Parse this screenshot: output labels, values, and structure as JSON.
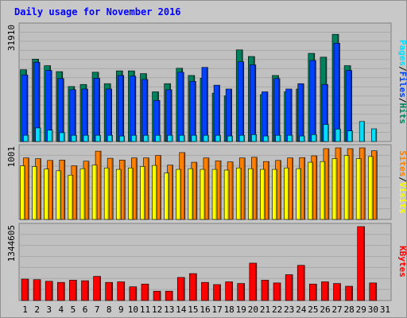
{
  "chart_data": {
    "type": "bar",
    "title": "Daily usage for November 2016",
    "x_labels": [
      "1",
      "2",
      "3",
      "4",
      "5",
      "6",
      "7",
      "8",
      "9",
      "10",
      "11",
      "12",
      "13",
      "14",
      "15",
      "16",
      "17",
      "18",
      "19",
      "20",
      "21",
      "22",
      "23",
      "24",
      "25",
      "26",
      "27",
      "28",
      "29",
      "30",
      "31"
    ],
    "weekend_days": [
      "5",
      "6",
      "12",
      "13",
      "19",
      "20",
      "26",
      "27"
    ],
    "colors": {
      "title": "#0000ff",
      "label": "#000000",
      "weekend_label": "#008040",
      "hits": "#00805c",
      "files": "#0040ff",
      "pages": "#00e0ff",
      "visits": "#ffff00",
      "sites": "#ff8000",
      "kbytes": "#ff0000",
      "plot_bg": "#c0c0c0",
      "frame_bg": "#c8c8c8"
    },
    "panels": [
      {
        "name": "hits",
        "ymax_label": "31910",
        "ymax": 31910,
        "legend": [
          {
            "text": "Pages",
            "color": "#00e0ff"
          },
          {
            "text": "/",
            "color": "#000000"
          },
          {
            "text": "Files",
            "color": "#0040ff"
          },
          {
            "text": "/",
            "color": "#000000"
          },
          {
            "text": "Hits",
            "color": "#00805c"
          }
        ],
        "series": [
          {
            "name": "Hits",
            "color": "#00805c",
            "values": [
              19870,
              22820,
              21000,
              19350,
              15220,
              15800,
              19180,
              16020,
              19560,
              19560,
              18800,
              13760,
              16020,
              20280,
              18280,
              17530,
              13380,
              12620,
              25360,
              23540,
              12990,
              18280,
              13760,
              14530,
              24410,
              23350,
              29670,
              21000,
              0,
              0,
              0
            ]
          },
          {
            "name": "Files",
            "color": "#0040ff",
            "values": [
              18430,
              21960,
              19680,
              17430,
              14340,
              14530,
              17530,
              14530,
              18280,
              18100,
              17180,
              11380,
              14340,
              19180,
              16660,
              20520,
              15600,
              14530,
              22080,
              21220,
              13760,
              17430,
              14530,
              16020,
              22440,
              15800,
              27210,
              19680,
              0,
              0,
              0
            ]
          },
          {
            "name": "Pages",
            "color": "#00e0ff",
            "values": [
              1720,
              3760,
              3140,
              2440,
              1720,
              1720,
              1720,
              1720,
              1520,
              1720,
              1720,
              1720,
              1720,
              1720,
              1720,
              1720,
              1720,
              1520,
              1720,
              1920,
              1520,
              1720,
              1720,
              1520,
              1920,
              4720,
              3440,
              2940,
              5540,
              3520,
              0
            ]
          }
        ]
      },
      {
        "name": "visits",
        "ymax_label": "1001",
        "ymax": 1001,
        "legend": [
          {
            "text": "Sites",
            "color": "#ff8000"
          },
          {
            "text": "/",
            "color": "#000000"
          },
          {
            "text": "Visits",
            "color": "#ffff00"
          }
        ],
        "series": [
          {
            "name": "Sites",
            "color": "#ff8000",
            "values": [
              860,
              850,
              825,
              830,
              750,
              815,
              955,
              855,
              830,
              860,
              860,
              895,
              760,
              935,
              800,
              860,
              820,
              805,
              860,
              870,
              810,
              825,
              860,
              865,
              890,
              990,
              1001,
              990,
              1001,
              960,
              0
            ]
          },
          {
            "name": "Visits",
            "color": "#ffff00",
            "values": [
              750,
              740,
              705,
              680,
              620,
              710,
              760,
              720,
              700,
              720,
              740,
              755,
              650,
              700,
              710,
              700,
              700,
              690,
              720,
              710,
              700,
              700,
              720,
              710,
              800,
              810,
              850,
              895,
              850,
              880,
              0
            ]
          }
        ]
      },
      {
        "name": "kbytes",
        "ymax_label": "1344605",
        "ymax": 1344605,
        "legend": [
          {
            "text": "KBytes",
            "color": "#ff0000"
          }
        ],
        "series": [
          {
            "name": "KBytes",
            "color": "#ff0000",
            "values": [
              390000,
              380000,
              350000,
              330000,
              370000,
              360000,
              440000,
              330000,
              340000,
              250000,
              300000,
              170000,
              170000,
              420000,
              490000,
              330000,
              290000,
              340000,
              310000,
              680000,
              370000,
              320000,
              470000,
              640000,
              300000,
              340000,
              310000,
              260000,
              1344605,
              320000,
              0
            ]
          }
        ]
      }
    ]
  }
}
